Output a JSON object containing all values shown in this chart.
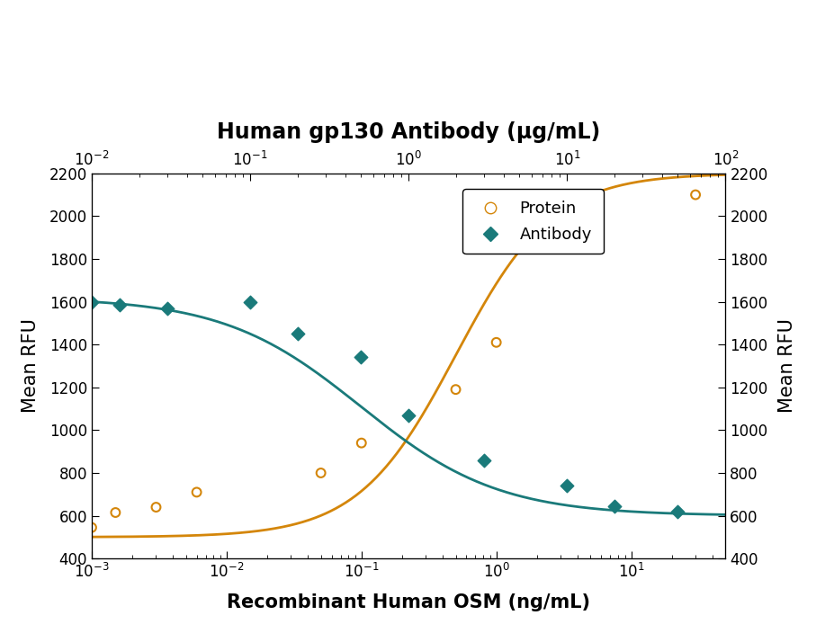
{
  "title_top": "Human gp130 Antibody (μg/mL)",
  "xlabel_bottom": "Recombinant Human OSM (ng/mL)",
  "ylabel_left": "Mean RFU",
  "ylabel_right": "Mean RFU",
  "ylim": [
    400,
    2200
  ],
  "yticks": [
    400,
    600,
    800,
    1000,
    1200,
    1400,
    1600,
    1800,
    2000,
    2200
  ],
  "osm_log_min": -3,
  "osm_log_max": 1.7,
  "ab_log_min": -2.0,
  "ab_log_max": 2.0,
  "protein_x": [
    0.001,
    0.0015,
    0.003,
    0.006,
    0.05,
    0.1,
    0.5,
    1.0,
    5.0,
    30.0
  ],
  "protein_y": [
    545,
    615,
    640,
    710,
    800,
    940,
    1190,
    1410,
    1870,
    2100
  ],
  "antibody_x": [
    0.01,
    0.015,
    0.03,
    0.1,
    0.2,
    0.5,
    1.0,
    3.0,
    10.0,
    20.0,
    50.0
  ],
  "antibody_y": [
    1600,
    1585,
    1570,
    1600,
    1450,
    1340,
    1070,
    860,
    740,
    645,
    620
  ],
  "protein_color": "#D4860A",
  "antibody_color": "#1A7A7A",
  "bg_color": "#FFFFFF",
  "fontsize_title": 17,
  "fontsize_axis_label": 15,
  "fontsize_tick": 12,
  "fontsize_legend": 13
}
